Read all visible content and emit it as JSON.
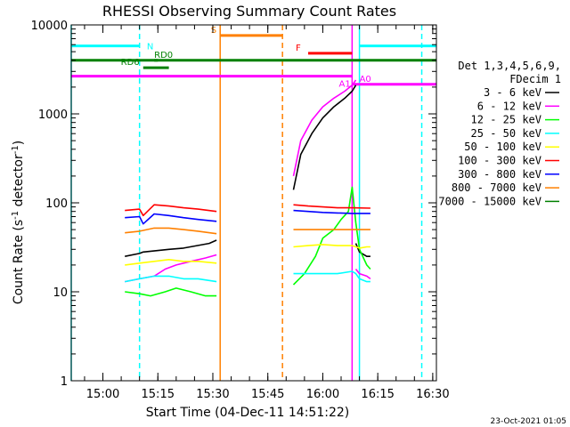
{
  "chart_data": {
    "type": "line",
    "title": "RHESSI Observing Summary Count Rates",
    "xlabel": "Start Time (04-Dec-11 14:51:22)",
    "ylabel_main": "Count Rate (s",
    "ylabel_sup1": "-1",
    "ylabel_mid": " detector",
    "ylabel_sup2": "-1",
    "ylabel_end": ")",
    "timestamp": "23-Oct-2021 01:05",
    "y_scale": "log",
    "ylim": [
      1,
      10000
    ],
    "xlim": [
      "14:51:22",
      "16:31"
    ],
    "x_ticks": [
      {
        "t": "15:00",
        "label": "15:00"
      },
      {
        "t": "15:15",
        "label": "15:15"
      },
      {
        "t": "15:30",
        "label": "15:30"
      },
      {
        "t": "15:45",
        "label": "15:45"
      },
      {
        "t": "16:00",
        "label": "16:00"
      },
      {
        "t": "16:15",
        "label": "16:15"
      },
      {
        "t": "16:30",
        "label": "16:30"
      }
    ],
    "y_ticks": [
      {
        "v": 1,
        "label": "1"
      },
      {
        "v": 10,
        "label": "10"
      },
      {
        "v": 100,
        "label": "100"
      },
      {
        "v": 1000,
        "label": "1000"
      },
      {
        "v": 10000,
        "label": "10000"
      }
    ],
    "legend_header": [
      "Det 1,3,4,5,6,9,",
      "FDecim 1"
    ],
    "legend_placement": "right",
    "series": [
      {
        "name": "3 - 6 keV",
        "color": "#000000",
        "segments": [
          {
            "t": [
              "15:06",
              "15:10",
              "15:11",
              "15:18",
              "15:22",
              "15:29",
              "15:31"
            ],
            "v": [
              25,
              27,
              28,
              30,
              31,
              35,
              38
            ]
          },
          {
            "t": [
              "15:52",
              "15:54",
              "15:57",
              "16:00",
              "16:03",
              "16:06",
              "16:08",
              "16:09"
            ],
            "v": [
              140,
              350,
              600,
              900,
              1200,
              1500,
              1800,
              2100
            ]
          },
          {
            "t": [
              "16:09",
              "16:10",
              "16:12",
              "16:13"
            ],
            "v": [
              35,
              28,
              25,
              25
            ]
          }
        ]
      },
      {
        "name": "6 - 12 keV",
        "color": "#ff00ff",
        "segments": [
          {
            "t": [
              "15:06",
              "15:10",
              "15:14",
              "15:17",
              "15:20",
              "15:24",
              "15:28",
              "15:31"
            ],
            "v": [
              13,
              14,
              15,
              18,
              20,
              22,
              24,
              26
            ]
          },
          {
            "t": [
              "15:52",
              "15:54",
              "15:57",
              "16:00",
              "16:03",
              "16:06",
              "16:08",
              "16:09"
            ],
            "v": [
              200,
              500,
              850,
              1200,
              1500,
              1800,
              2100,
              2400
            ]
          },
          {
            "t": [
              "16:09",
              "16:10",
              "16:12",
              "16:13"
            ],
            "v": [
              18,
              16,
              15,
              14
            ]
          }
        ]
      },
      {
        "name": "12 - 25 keV",
        "color": "#00ff00",
        "segments": [
          {
            "t": [
              "15:06",
              "15:10",
              "15:13",
              "15:17",
              "15:20",
              "15:24",
              "15:28",
              "15:31"
            ],
            "v": [
              10,
              9.5,
              9,
              10,
              11,
              10,
              9,
              9
            ]
          },
          {
            "t": [
              "15:52",
              "15:55",
              "15:58",
              "16:00",
              "16:03",
              "16:05",
              "16:07",
              "16:08",
              "16:09",
              "16:10",
              "16:12",
              "16:13"
            ],
            "v": [
              12,
              16,
              25,
              40,
              50,
              65,
              80,
              150,
              60,
              30,
              20,
              18
            ]
          }
        ]
      },
      {
        "name": "25 - 50 keV",
        "color": "#00ffff",
        "segments": [
          {
            "t": [
              "15:06",
              "15:10",
              "15:14",
              "15:18",
              "15:22",
              "15:26",
              "15:31"
            ],
            "v": [
              13,
              14,
              15,
              15,
              14,
              14,
              13
            ]
          },
          {
            "t": [
              "15:52",
              "15:56",
              "16:00",
              "16:04",
              "16:08",
              "16:09",
              "16:10",
              "16:12",
              "16:13"
            ],
            "v": [
              16,
              16,
              16,
              16,
              17,
              16,
              14,
              13,
              13
            ]
          }
        ]
      },
      {
        "name": "50 - 100 keV",
        "color": "#ffff00",
        "segments": [
          {
            "t": [
              "15:06",
              "15:10",
              "15:14",
              "15:18",
              "15:22",
              "15:26",
              "15:31"
            ],
            "v": [
              20,
              21,
              22,
              23,
              22,
              22,
              21
            ]
          },
          {
            "t": [
              "15:52",
              "15:56",
              "16:00",
              "16:04",
              "16:08",
              "16:09",
              "16:10",
              "16:12",
              "16:13"
            ],
            "v": [
              32,
              33,
              34,
              33,
              33,
              32,
              31,
              32,
              32
            ]
          }
        ]
      },
      {
        "name": "100 - 300 keV",
        "color": "#ff0000",
        "segments": [
          {
            "t": [
              "15:06",
              "15:10",
              "15:11",
              "15:14",
              "15:18",
              "15:22",
              "15:26",
              "15:31"
            ],
            "v": [
              82,
              85,
              72,
              95,
              92,
              88,
              85,
              80
            ]
          },
          {
            "t": [
              "15:52",
              "15:56",
              "16:00",
              "16:04",
              "16:08",
              "16:13"
            ],
            "v": [
              95,
              92,
              90,
              88,
              88,
              87
            ]
          }
        ]
      },
      {
        "name": "300 - 800 keV",
        "color": "#0000ff",
        "segments": [
          {
            "t": [
              "15:06",
              "15:10",
              "15:11",
              "15:14",
              "15:18",
              "15:22",
              "15:26",
              "15:31"
            ],
            "v": [
              68,
              70,
              58,
              75,
              72,
              68,
              65,
              62
            ]
          },
          {
            "t": [
              "15:52",
              "15:56",
              "16:00",
              "16:04",
              "16:08",
              "16:13"
            ],
            "v": [
              82,
              80,
              78,
              77,
              76,
              76
            ]
          }
        ]
      },
      {
        "name": "800 - 7000 keV",
        "color": "#ff8000",
        "segments": [
          {
            "t": [
              "15:06",
              "15:10",
              "15:14",
              "15:18",
              "15:22",
              "15:26",
              "15:31"
            ],
            "v": [
              46,
              48,
              52,
              52,
              50,
              48,
              45
            ]
          },
          {
            "t": [
              "15:52",
              "15:56",
              "16:00",
              "16:04",
              "16:08",
              "16:13"
            ],
            "v": [
              50,
              50,
              50,
              50,
              50,
              50
            ]
          }
        ]
      },
      {
        "name": "7000 - 15000 keV",
        "color": "#008000",
        "segments": []
      }
    ],
    "annotations": {
      "bars": [
        {
          "label": "N",
          "color": "#00ffff",
          "t0": "14:51:22",
          "t1": "15:10",
          "v": 5800,
          "label_at": "15:12",
          "label_side": "right"
        },
        {
          "label": "",
          "color": "#00ffff",
          "t0": "16:10",
          "t1": "16:31",
          "v": 5800,
          "label_at": "",
          "label_side": "none"
        },
        {
          "label": "S",
          "color": "#ff8000",
          "t0": "15:32",
          "t1": "15:49",
          "v": 7600,
          "label_at": "15:31",
          "label_side": "left"
        },
        {
          "label": "F",
          "color": "#ff0000",
          "t0": "15:56",
          "t1": "16:08",
          "v": 4800,
          "label_at": "15:54",
          "label_side": "left"
        },
        {
          "label": "",
          "color": "#008000",
          "t0": "14:51:22",
          "t1": "16:31",
          "v": 4000,
          "label_at": "",
          "label_side": "none"
        },
        {
          "label": "RD0",
          "color": "#008000",
          "t0": "15:14",
          "t1": "15:15",
          "v": 4000,
          "label_at": "15:14",
          "label_side": "above"
        },
        {
          "label": "RD6",
          "color": "#008000",
          "t0": "15:11",
          "t1": "15:18",
          "v": 3300,
          "label_at": "15:10",
          "label_side": "left"
        },
        {
          "label": "A1",
          "color": "#ff00ff",
          "t0": "14:51:22",
          "t1": "16:08",
          "v": 2650,
          "label_at": "16:06",
          "label_side": "below"
        },
        {
          "label": "A0",
          "color": "#ff00ff",
          "t0": "16:08",
          "t1": "16:31",
          "v": 2150,
          "label_at": "16:10",
          "label_side": "above"
        }
      ],
      "vlines": [
        {
          "t": "14:51:22",
          "color": "#00ffff",
          "style": "solid"
        },
        {
          "t": "15:10",
          "color": "#00ffff",
          "style": "dashed"
        },
        {
          "t": "15:32",
          "color": "#ff8000",
          "style": "solid"
        },
        {
          "t": "15:49",
          "color": "#ff8000",
          "style": "dashed"
        },
        {
          "t": "16:08",
          "color": "#ff00ff",
          "style": "solid"
        },
        {
          "t": "16:10",
          "color": "#00ffff",
          "style": "solid"
        },
        {
          "t": "16:27",
          "color": "#00ffff",
          "style": "dashed"
        }
      ]
    }
  }
}
